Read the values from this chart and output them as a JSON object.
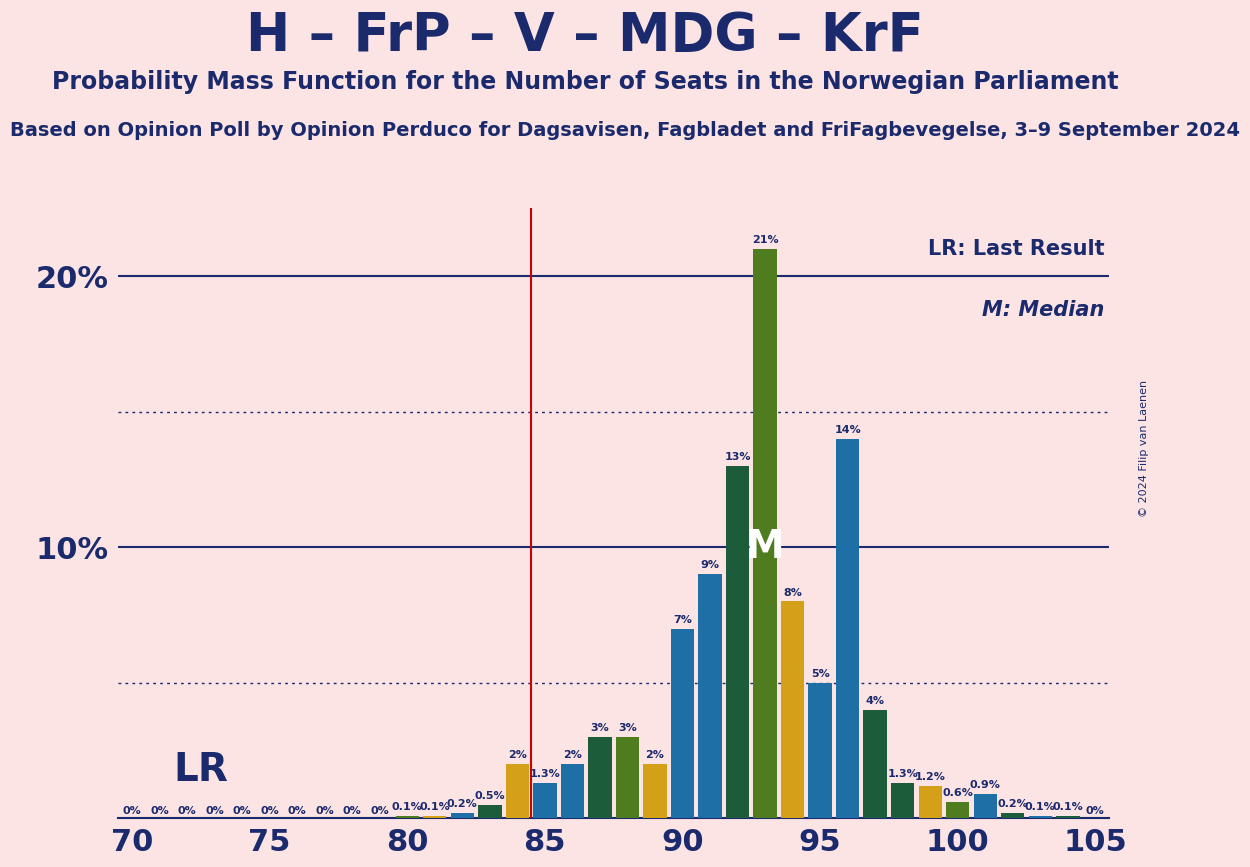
{
  "title": "H – FrP – V – MDG – KrF",
  "subtitle": "Probability Mass Function for the Number of Seats in the Norwegian Parliament",
  "source_line": "Based on Opinion Poll by Opinion Perduco for Dagsavisen, Fagbladet and FriFagbevegelse, 3–9 September 2024",
  "copyright": "© 2024 Filip van Laenen",
  "background_color": "#fce4e4",
  "title_color": "#1a2a6c",
  "seats": [
    70,
    71,
    72,
    73,
    74,
    75,
    76,
    77,
    78,
    79,
    80,
    81,
    82,
    83,
    84,
    85,
    86,
    87,
    88,
    89,
    90,
    91,
    92,
    93,
    94,
    95,
    96,
    97,
    98,
    99,
    100,
    101,
    102,
    103,
    104,
    105
  ],
  "probabilities": [
    0.0,
    0.0,
    0.0,
    0.0,
    0.0,
    0.0,
    0.0,
    0.0,
    0.0,
    0.0,
    0.1,
    0.1,
    0.2,
    0.5,
    2.0,
    1.3,
    2.0,
    3.0,
    3.0,
    2.0,
    7.0,
    9.0,
    13.0,
    21.0,
    8.0,
    5.0,
    14.0,
    4.0,
    1.3,
    1.2,
    0.6,
    0.9,
    0.2,
    0.1,
    0.1,
    0.0
  ],
  "color_map": {
    "70": "#1d6fa5",
    "71": "#1d5c3a",
    "72": "#4e7c1f",
    "73": "#d4a017",
    "74": "#1d6fa5",
    "75": "#1d5c3a",
    "76": "#4e7c1f",
    "77": "#d4a017",
    "78": "#1d6fa5",
    "79": "#1d5c3a",
    "80": "#4e7c1f",
    "81": "#d4a017",
    "82": "#1d6fa5",
    "83": "#1d5c3a",
    "84": "#d4a017",
    "85": "#1d6fa5",
    "86": "#1d6fa5",
    "87": "#1d5c3a",
    "88": "#4e7c1f",
    "89": "#d4a017",
    "90": "#1d6fa5",
    "91": "#1d6fa5",
    "92": "#1d5c3a",
    "93": "#4e7c1f",
    "94": "#d4a017",
    "95": "#1d6fa5",
    "96": "#1d6fa5",
    "97": "#1d5c3a",
    "98": "#1d5c3a",
    "99": "#d4a017",
    "100": "#4e7c1f",
    "101": "#1d6fa5",
    "102": "#1d5c3a",
    "103": "#1d6fa5",
    "104": "#1d5c3a",
    "105": "#4e7c1f"
  },
  "last_result_x": 84.5,
  "median_seat": 93,
  "median_label": "M",
  "lr_label": "LR",
  "xmin": 69.5,
  "xmax": 105.5,
  "ymin": 0.0,
  "ymax": 22.5,
  "solid_hlines": [
    10.0,
    20.0
  ],
  "dotted_hlines": [
    5.0,
    15.0
  ],
  "hline_color": "#1a2a6c",
  "vline_color": "#cc0000",
  "bar_width": 0.85,
  "label_fontsize": 8.0,
  "axis_tick_fontsize": 22,
  "title_fontsize": 38,
  "subtitle_fontsize": 17,
  "source_fontsize": 14,
  "ytick_labels": [
    "10%",
    "20%"
  ],
  "ytick_values": [
    10.0,
    20.0
  ],
  "xtick_values": [
    70,
    75,
    80,
    85,
    90,
    95,
    100,
    105
  ],
  "legend_lr": "LR: Last Result",
  "legend_m": "M: Median",
  "legend_fontsize": 15,
  "median_label_fontsize": 28,
  "lr_data_fontsize": 28
}
